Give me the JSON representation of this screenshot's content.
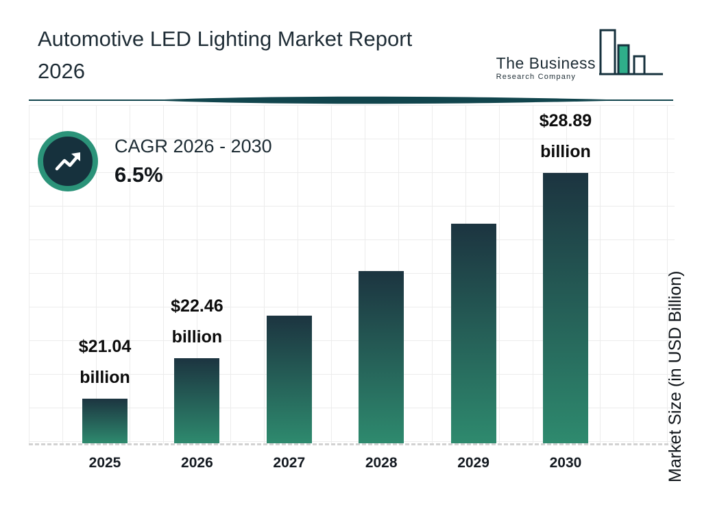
{
  "header": {
    "title_line1": "Automotive LED Lighting Market Report",
    "title_line2": "2026",
    "logo": {
      "line1": "The Business",
      "line2": "Research Company"
    }
  },
  "cagr": {
    "label": "CAGR 2026 - 2030",
    "value": "6.5%"
  },
  "chart_data": {
    "type": "bar",
    "title": "Automotive LED Lighting Market Report 2026",
    "categories": [
      "2025",
      "2026",
      "2027",
      "2028",
      "2029",
      "2030"
    ],
    "values": [
      21.04,
      22.46,
      23.92,
      25.47,
      27.13,
      28.89
    ],
    "bar_labels": [
      {
        "line1": "$21.04",
        "line2": "billion"
      },
      {
        "line1": "$22.46",
        "line2": "billion"
      },
      null,
      null,
      null,
      {
        "line1": "$28.89",
        "line2": "billion"
      }
    ],
    "xlabel": "",
    "ylabel": "Market Size (in USD Billion)",
    "ylim": [
      19.5,
      29.5
    ],
    "grid": true,
    "legend": false,
    "bar_color_top": "#1c3440",
    "bar_color_bottom": "#2e8a6e"
  },
  "colors": {
    "accent_teal": "#2b9379",
    "dark_navy": "#16313d",
    "divider": "#11454d",
    "grid_line": "#ececec"
  }
}
